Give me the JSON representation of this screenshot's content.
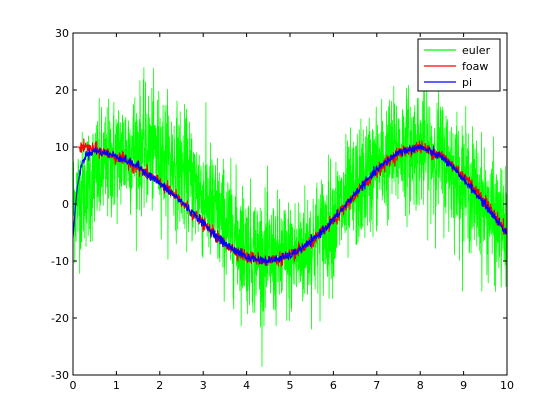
{
  "chart_data": {
    "type": "line",
    "xlim": [
      0,
      10
    ],
    "ylim": [
      -30,
      30
    ],
    "xticks": [
      0,
      1,
      2,
      3,
      4,
      5,
      6,
      7,
      8,
      9,
      10
    ],
    "yticks": [
      -30,
      -20,
      -10,
      0,
      10,
      20,
      30
    ],
    "xtick_labels": [
      "0",
      "1",
      "2",
      "3",
      "4",
      "5",
      "6",
      "7",
      "8",
      "9",
      "10"
    ],
    "ytick_labels": [
      "-30",
      "-20",
      "-10",
      "0",
      "10",
      "20",
      "30"
    ],
    "grid": false,
    "legend_position": "top-right",
    "series": [
      {
        "name": "euler",
        "color": "#00ff00",
        "description_signal": "noisy sinusoid",
        "amplitude": 10,
        "noise_amplitude": 17,
        "x": [
          0,
          0.5,
          1,
          1.5,
          2,
          2.5,
          3,
          3.5,
          4,
          4.5,
          5,
          5.5,
          6,
          6.5,
          7,
          7.5,
          8,
          8.5,
          9,
          9.5,
          10
        ],
        "y": [
          0,
          4.8,
          8.4,
          10,
          9.1,
          6,
          1.4,
          -3.5,
          -7.6,
          -9.8,
          -9.6,
          -7.1,
          -2.8,
          2.2,
          6.6,
          9.4,
          9.9,
          8,
          4.1,
          -0.8,
          -5.4
        ]
      },
      {
        "name": "foaw",
        "color": "#ff0000",
        "x": [
          0,
          0.1,
          0.3,
          0.5,
          1,
          1.5,
          2,
          2.5,
          3,
          3.5,
          4,
          4.5,
          5,
          5.5,
          6,
          6.5,
          7,
          7.5,
          8,
          8.5,
          9,
          9.5,
          10
        ],
        "y": [
          10,
          10,
          9.9,
          9.6,
          8.3,
          6.4,
          3.8,
          0.3,
          -3.5,
          -7,
          -9.3,
          -10,
          -9.2,
          -6.8,
          -3,
          1.5,
          5.8,
          9,
          10,
          8.5,
          5,
          0.5,
          -5
        ]
      },
      {
        "name": "pi",
        "color": "#0000ff",
        "x": [
          0,
          0.05,
          0.1,
          0.2,
          0.3,
          0.5,
          1,
          1.5,
          2,
          2.5,
          3,
          3.5,
          4,
          4.5,
          5,
          5.5,
          6,
          6.5,
          7,
          7.5,
          8,
          8.5,
          9,
          9.5,
          10
        ],
        "y": [
          -6,
          -1,
          3,
          7,
          8.6,
          9.4,
          8.4,
          6.6,
          3.6,
          0.4,
          -3.4,
          -7,
          -9.4,
          -10,
          -9.1,
          -6.6,
          -2.8,
          1.8,
          6,
          9.1,
          10,
          8.2,
          4.4,
          -0.2,
          -5.2
        ]
      }
    ]
  }
}
